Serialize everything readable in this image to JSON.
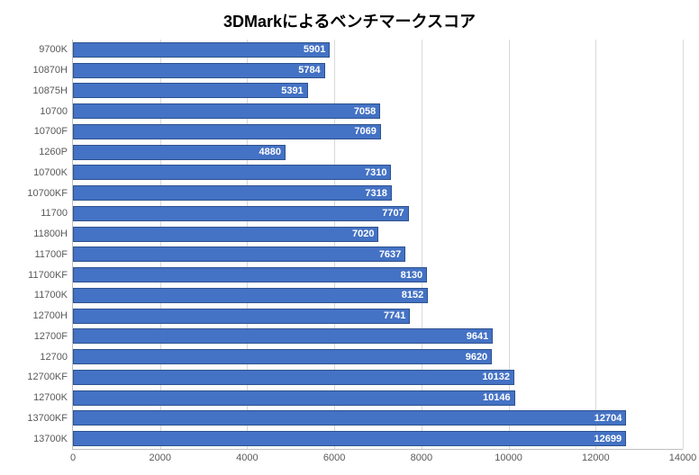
{
  "chart": {
    "type": "bar-horizontal",
    "title": "3DMarkによるベンチマークスコア",
    "title_fontsize": 18,
    "title_fontweight": "bold",
    "title_color": "#000000",
    "background_color": "#ffffff",
    "grid_color": "#d9d9d9",
    "axis_color": "#bfbfbf",
    "label_color": "#595959",
    "label_fontsize": 11,
    "value_label_color": "#ffffff",
    "value_label_fontsize": 11,
    "value_label_fontweight": "bold",
    "bar_color": "#4472c4",
    "bar_border_color": "#2e528f",
    "bar_gap_ratio": 0.25,
    "xlim": [
      0,
      14000
    ],
    "xtick_step": 2000,
    "xticks": [
      0,
      2000,
      4000,
      6000,
      8000,
      10000,
      12000,
      14000
    ],
    "categories": [
      "9700K",
      "10870H",
      "10875H",
      "10700",
      "10700F",
      "1260P",
      "10700K",
      "10700KF",
      "11700",
      "11800H",
      "11700F",
      "11700KF",
      "11700K",
      "12700H",
      "12700F",
      "12700",
      "12700KF",
      "12700K",
      "13700KF",
      "13700K"
    ],
    "values": [
      5901,
      5784,
      5391,
      7058,
      7069,
      4880,
      7310,
      7318,
      7707,
      7020,
      7637,
      8130,
      8152,
      7741,
      9641,
      9620,
      10132,
      10146,
      12704,
      12699
    ]
  }
}
